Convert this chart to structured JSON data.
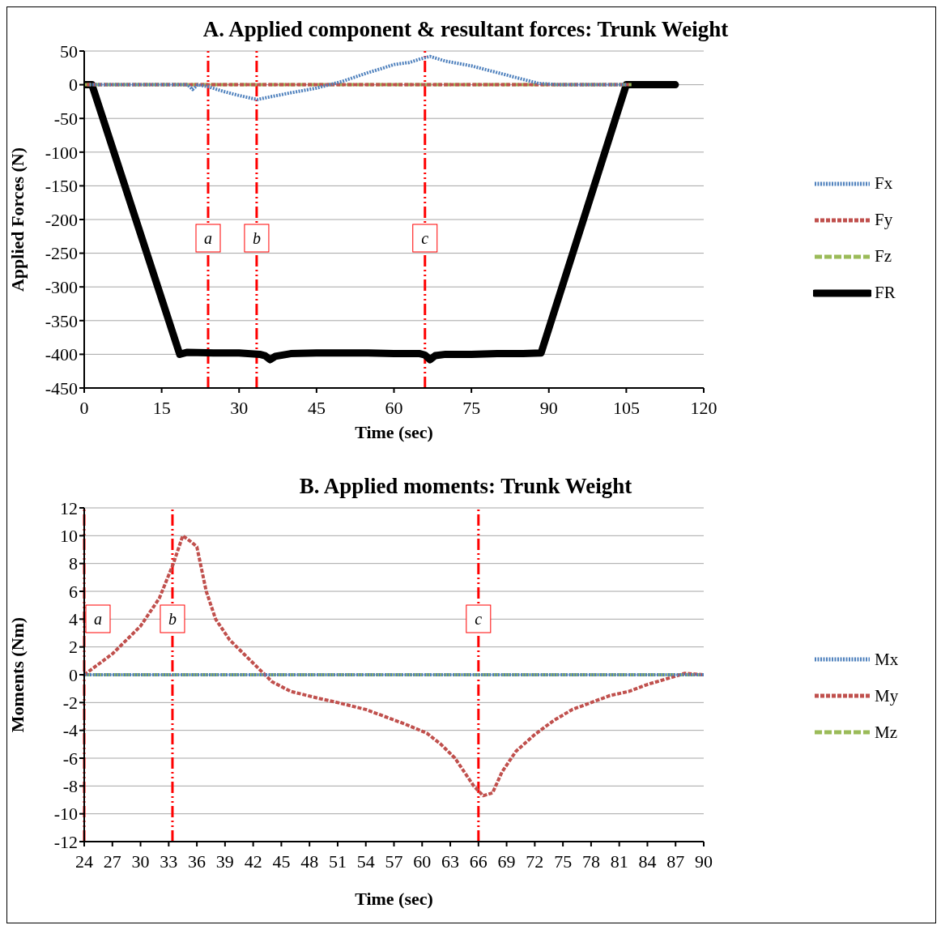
{
  "chart_data": [
    {
      "type": "line",
      "title": "A. Applied component & resultant forces: Trunk Weight",
      "xlabel": "Time (sec)",
      "ylabel": "Applied Forces (N)",
      "xlim": [
        0,
        120
      ],
      "xticks": [
        0,
        15,
        30,
        45,
        60,
        75,
        90,
        105,
        120
      ],
      "ylim": [
        -450,
        50
      ],
      "yticks": [
        -450,
        -400,
        -350,
        -300,
        -250,
        -200,
        -150,
        -100,
        -50,
        0,
        50
      ],
      "grid": "y",
      "legend": "right",
      "marker": "none",
      "series": [
        {
          "name": "Fx",
          "color": "#4f81bd",
          "line_style": "dotted",
          "x": [
            1,
            5,
            10,
            15,
            20,
            21,
            22,
            24,
            27,
            30,
            33.5,
            36,
            40,
            45,
            50,
            55,
            58,
            60,
            63,
            65,
            67,
            70,
            75,
            80,
            85,
            88,
            92,
            100,
            105
          ],
          "values": [
            0,
            0,
            0,
            0,
            0,
            -7,
            0,
            -3,
            -10,
            -16,
            -22,
            -18,
            -12,
            -5,
            5,
            18,
            25,
            30,
            33,
            38,
            42,
            35,
            28,
            18,
            8,
            2,
            0,
            0,
            0
          ]
        },
        {
          "name": "Fy",
          "color": "#c0504d",
          "line_style": "dashed",
          "x": [
            0.5,
            10,
            20,
            30,
            40,
            50,
            60,
            70,
            80,
            90,
            100,
            105.5
          ],
          "values": [
            0,
            0,
            0,
            0,
            0,
            0,
            0,
            0,
            0,
            0,
            0,
            0
          ]
        },
        {
          "name": "Fz",
          "color": "#9bbb59",
          "line_style": "longdash",
          "x": [
            0,
            10,
            20,
            30,
            40,
            50,
            60,
            70,
            80,
            90,
            100,
            106
          ],
          "values": [
            0,
            0,
            0,
            0,
            0,
            0,
            0,
            0,
            0,
            0,
            0,
            0
          ]
        },
        {
          "name": "FR",
          "color": "#000000",
          "line_style": "solid",
          "x": [
            0,
            1.5,
            18.5,
            20,
            25,
            30,
            34,
            35,
            36,
            37,
            40,
            45,
            50,
            55,
            60,
            65,
            66,
            67,
            68,
            70,
            75,
            80,
            85,
            88.5,
            105,
            106,
            110,
            114.5
          ],
          "values": [
            0,
            0,
            -400,
            -397,
            -398,
            -398,
            -400,
            -402,
            -408,
            -403,
            -399,
            -398,
            -398,
            -398,
            -399,
            -399,
            -401,
            -408,
            -402,
            -400,
            -400,
            -399,
            -399,
            -398,
            0,
            0,
            0,
            0
          ]
        }
      ],
      "ref_lines": [
        {
          "axis": "x",
          "value": 24,
          "label": "a",
          "color": "#ff0000",
          "line_style": "dashdot"
        },
        {
          "axis": "x",
          "value": 33.4,
          "label": "b",
          "color": "#ff0000",
          "line_style": "dashdot"
        },
        {
          "axis": "x",
          "value": 66,
          "label": "c",
          "color": "#ff0000",
          "line_style": "dashdot"
        }
      ]
    },
    {
      "type": "line",
      "title": "B. Applied moments: Trunk Weight",
      "xlabel": "Time (sec)",
      "ylabel": "Moments (Nm)",
      "xlim": [
        24,
        90
      ],
      "xticks": [
        24,
        27,
        30,
        33,
        36,
        39,
        42,
        45,
        48,
        51,
        54,
        57,
        60,
        63,
        66,
        69,
        72,
        75,
        78,
        81,
        84,
        87,
        90
      ],
      "ylim": [
        -12,
        12
      ],
      "yticks": [
        -12,
        -10,
        -8,
        -6,
        -4,
        -2,
        0,
        2,
        4,
        6,
        8,
        10,
        12
      ],
      "grid": "y",
      "legend": "right",
      "marker": "none",
      "series": [
        {
          "name": "Mx",
          "color": "#4f81bd",
          "line_style": "dotted",
          "x": [
            24,
            30,
            36,
            42,
            48,
            54,
            60,
            66,
            72,
            78,
            84,
            90
          ],
          "values": [
            0,
            0,
            0,
            0,
            0,
            0,
            0,
            0,
            0,
            0,
            0,
            0
          ]
        },
        {
          "name": "My",
          "color": "#c0504d",
          "line_style": "dashed",
          "x": [
            24,
            27,
            30,
            32,
            33.5,
            34.5,
            35.5,
            36,
            37,
            38,
            39.5,
            41,
            42.5,
            44,
            46,
            49,
            51,
            54,
            56,
            58,
            60.5,
            62,
            63.5,
            64.5,
            65.5,
            66.5,
            67.5,
            68.5,
            70,
            72,
            74,
            76,
            78,
            80,
            82,
            84,
            86,
            88,
            90
          ],
          "values": [
            0,
            1.5,
            3.5,
            5.5,
            8,
            10,
            9.5,
            9.2,
            6,
            4,
            2.5,
            1.5,
            0.5,
            -0.5,
            -1.2,
            -1.7,
            -2,
            -2.5,
            -3,
            -3.5,
            -4.2,
            -5,
            -6,
            -7,
            -8,
            -8.7,
            -8.5,
            -7,
            -5.5,
            -4.3,
            -3.3,
            -2.5,
            -2,
            -1.5,
            -1.2,
            -0.7,
            -0.3,
            0.1,
            0
          ]
        },
        {
          "name": "Mz",
          "color": "#9bbb59",
          "line_style": "longdash",
          "x": [
            24,
            30,
            36,
            42,
            48,
            54,
            60,
            66,
            72,
            78,
            84,
            90
          ],
          "values": [
            0,
            0,
            0,
            0,
            0,
            0,
            0,
            0,
            0,
            0,
            0,
            0
          ]
        }
      ],
      "ref_lines": [
        {
          "axis": "x",
          "value": 24,
          "label": "a",
          "color": "#ff0000",
          "line_style": "dashdot"
        },
        {
          "axis": "x",
          "value": 33.4,
          "label": "b",
          "color": "#ff0000",
          "line_style": "dashdot"
        },
        {
          "axis": "x",
          "value": 66,
          "label": "c",
          "color": "#ff0000",
          "line_style": "dashdot"
        }
      ]
    }
  ]
}
